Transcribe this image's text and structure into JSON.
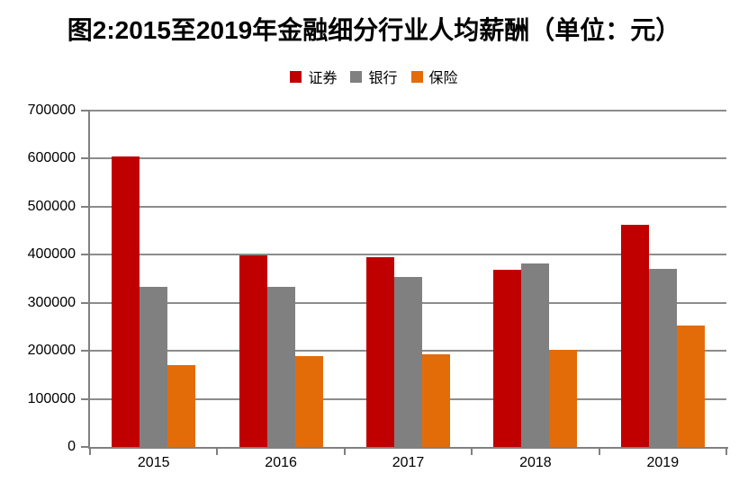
{
  "chart_data": {
    "type": "bar",
    "title": "图2:2015至2019年金融细分行业人均薪酬（单位：元）",
    "categories": [
      "2015",
      "2016",
      "2017",
      "2018",
      "2019"
    ],
    "series": [
      {
        "name": "证券",
        "key": "securities",
        "color": "#C00000",
        "values": [
          605000,
          398000,
          395000,
          368000,
          462000
        ]
      },
      {
        "name": "银行",
        "key": "bank",
        "color": "#808080",
        "values": [
          333000,
          333000,
          354000,
          381000,
          371000
        ]
      },
      {
        "name": "保险",
        "key": "insurance",
        "color": "#E36C09",
        "values": [
          171000,
          189000,
          193000,
          203000,
          253000
        ]
      }
    ],
    "xlabel": "",
    "ylabel": "",
    "ylim": [
      0,
      700000
    ],
    "ytick_step": 100000,
    "ytick_labels": [
      "0",
      "100000",
      "200000",
      "300000",
      "400000",
      "500000",
      "600000",
      "700000"
    ],
    "grid": true,
    "legend_position": "top",
    "axis_color": "#808080",
    "grid_color": "#8C8C8C",
    "text_color": "#000000",
    "background": "#FFFFFF"
  }
}
